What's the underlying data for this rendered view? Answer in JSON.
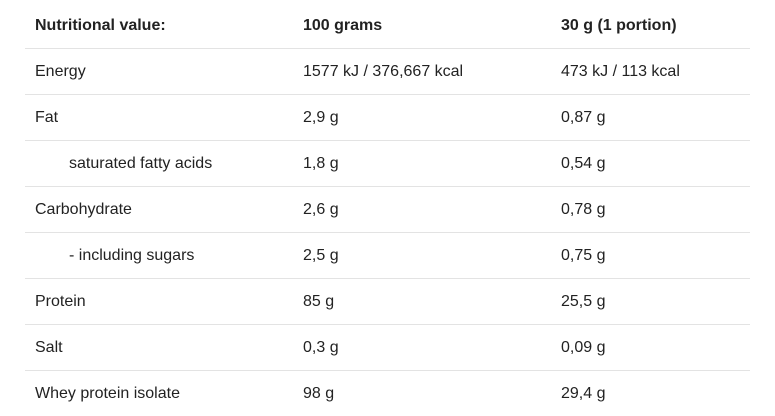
{
  "table": {
    "headers": {
      "name": "Nutritional value:",
      "per100": "100 grams",
      "portion": "30 g (1 portion)"
    },
    "rows": [
      {
        "name": "Energy",
        "per100": "1577 kJ / 376,667 kcal",
        "portion": "473 kJ / 113 kcal"
      },
      {
        "name": "Fat",
        "per100": "2,9 g",
        "portion": "0,87 g"
      },
      {
        "name": "saturated fatty acids",
        "per100": "1,8 g",
        "portion": "0,54 g"
      },
      {
        "name": "Carbohydrate",
        "per100": "2,6 g",
        "portion": "0,78 g"
      },
      {
        "name": "- including sugars",
        "per100": "2,5 g",
        "portion": "0,75 g"
      },
      {
        "name": "Protein",
        "per100": "85 g",
        "portion": "25,5 g"
      },
      {
        "name": "Salt",
        "per100": "0,3 g",
        "portion": "0,09 g"
      },
      {
        "name": "Whey protein isolate",
        "per100": "98 g",
        "portion": "29,4 g"
      }
    ]
  }
}
